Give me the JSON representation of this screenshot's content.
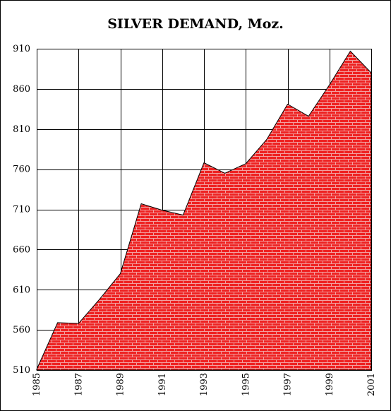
{
  "chart_data": {
    "type": "area",
    "title": "SILVER DEMAND, Moz.",
    "xlabel": "",
    "ylabel": "",
    "x": [
      1985,
      1986,
      1987,
      1988,
      1989,
      1990,
      1991,
      1992,
      1993,
      1994,
      1995,
      1996,
      1997,
      1998,
      1999,
      2000,
      2001
    ],
    "series": [
      {
        "values": [
          511,
          569,
          568,
          598,
          630,
          717,
          709,
          703,
          768,
          755,
          767,
          797,
          841,
          826,
          865,
          907,
          880
        ]
      }
    ],
    "xlim": [
      1985,
      2001
    ],
    "ylim": [
      510,
      910
    ],
    "y_ticks": [
      510,
      560,
      610,
      660,
      710,
      760,
      810,
      860,
      910
    ],
    "x_ticks": [
      1985,
      1987,
      1989,
      1991,
      1993,
      1995,
      1997,
      1999,
      2001
    ],
    "grid": true,
    "legend": "none",
    "fill_color": "#ee2222",
    "pattern_line_color": "#f2a0a0",
    "outline_color": "#000000"
  }
}
